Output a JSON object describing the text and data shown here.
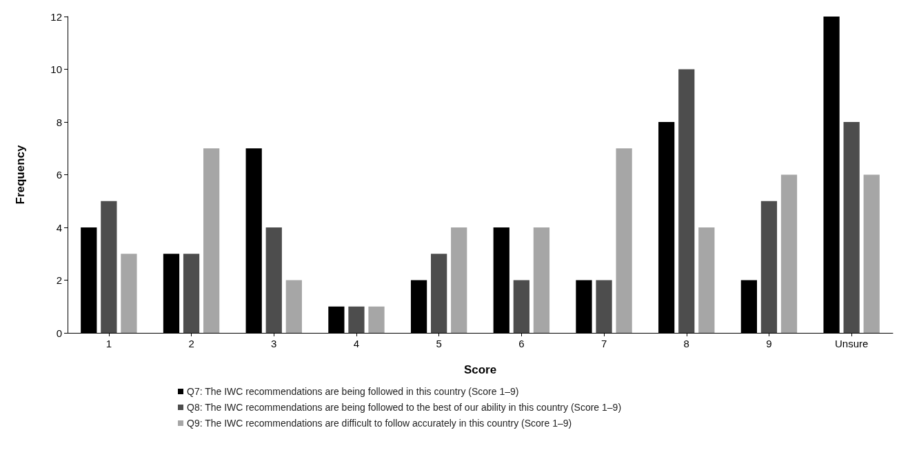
{
  "chart_data": {
    "type": "bar",
    "xlabel": "Score",
    "ylabel": "Frequency",
    "categories": [
      "1",
      "2",
      "3",
      "4",
      "5",
      "6",
      "7",
      "8",
      "9",
      "Unsure"
    ],
    "series": [
      {
        "name": "Q7: The IWC recommendations are being followed in this country (Score 1–9)",
        "color": "#000000",
        "values": [
          4,
          3,
          7,
          1,
          2,
          4,
          2,
          8,
          2,
          12
        ]
      },
      {
        "name": "Q8: The IWC recommendations are being followed to the best of our ability in this country (Score 1–9)",
        "color": "#4d4d4d",
        "values": [
          5,
          3,
          4,
          1,
          3,
          2,
          2,
          10,
          5,
          8
        ]
      },
      {
        "name": "Q9: The IWC recommendations are difficult to follow accurately in this country (Score 1–9)",
        "color": "#a6a6a6",
        "values": [
          3,
          7,
          2,
          1,
          4,
          4,
          7,
          4,
          6,
          6
        ]
      }
    ],
    "ylim": [
      0,
      12
    ],
    "yticks": [
      0,
      2,
      4,
      6,
      8,
      10,
      12
    ],
    "grid": false,
    "legend": "bottom"
  }
}
